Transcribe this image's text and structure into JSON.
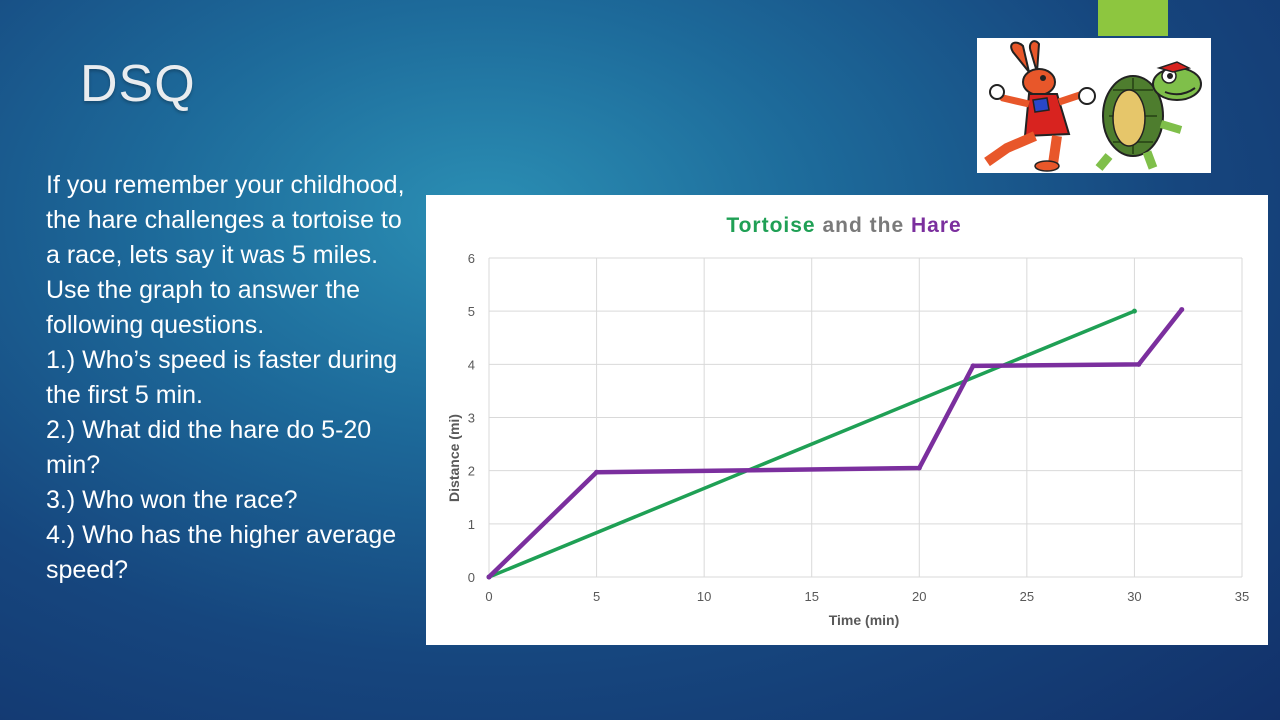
{
  "slide": {
    "title": "DSQ",
    "accent_color": "#8dc63f",
    "paragraphs": [
      "If you remember your childhood, the hare challenges a tortoise to a race, lets say it was 5 miles. Use the graph to answer the following questions.",
      "1.) Who’s speed is faster during the first 5 min.",
      "2.) What did the hare do 5-20 min?",
      "3.) Who won the race?",
      "4.) Who has the higher average speed?"
    ]
  },
  "image": {
    "description_icon": "hare-and-tortoise-cartoon"
  },
  "chart_data": {
    "type": "line",
    "title_parts": [
      "Tortoise",
      " and the ",
      "Hare"
    ],
    "title_colors": [
      "#1fa055",
      "#7a7a7a",
      "#7b2f9e"
    ],
    "xlabel": "Time (min)",
    "ylabel": "Distance (mi)",
    "xlim": [
      0,
      35
    ],
    "ylim": [
      0,
      6
    ],
    "xticks": [
      0,
      5,
      10,
      15,
      20,
      25,
      30,
      35
    ],
    "yticks": [
      0,
      1,
      2,
      3,
      4,
      5,
      6
    ],
    "grid": true,
    "legend": "none",
    "series": [
      {
        "color": "#1fa055",
        "points": [
          [
            0,
            0
          ],
          [
            30,
            5
          ]
        ]
      },
      {
        "color": "#7b2f9e",
        "points": [
          [
            0,
            0
          ],
          [
            5,
            1.97
          ],
          [
            20,
            2.05
          ],
          [
            22.5,
            3.97
          ],
          [
            30.2,
            4.0
          ],
          [
            32.2,
            5.03
          ]
        ]
      }
    ]
  }
}
